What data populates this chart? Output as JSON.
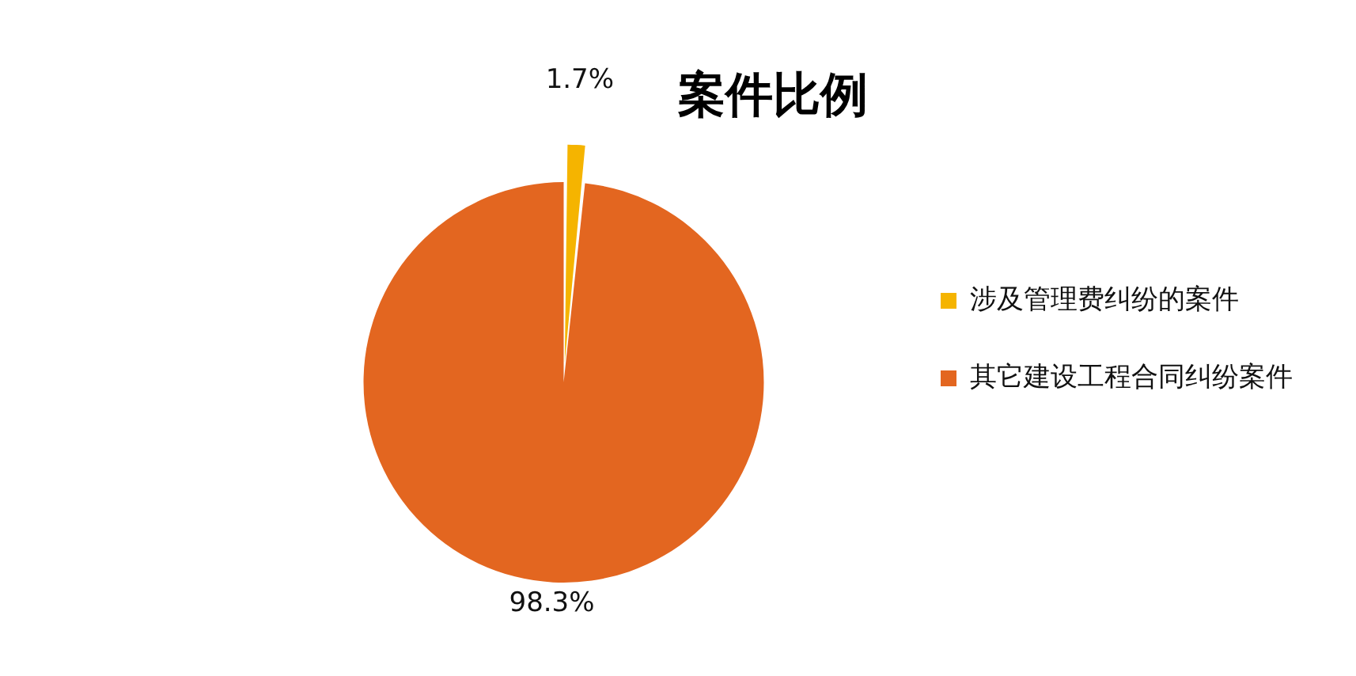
{
  "chart_data": {
    "type": "pie",
    "title": "案件比例",
    "categories": [
      "涉及管理费纠纷的案件",
      "其它建设工程合同纠纷案件"
    ],
    "values": [
      1.7,
      98.3
    ],
    "colors": [
      "#f5b400",
      "#e36620"
    ],
    "value_labels": [
      "1.7%",
      "98.3%"
    ],
    "legend": "right"
  }
}
